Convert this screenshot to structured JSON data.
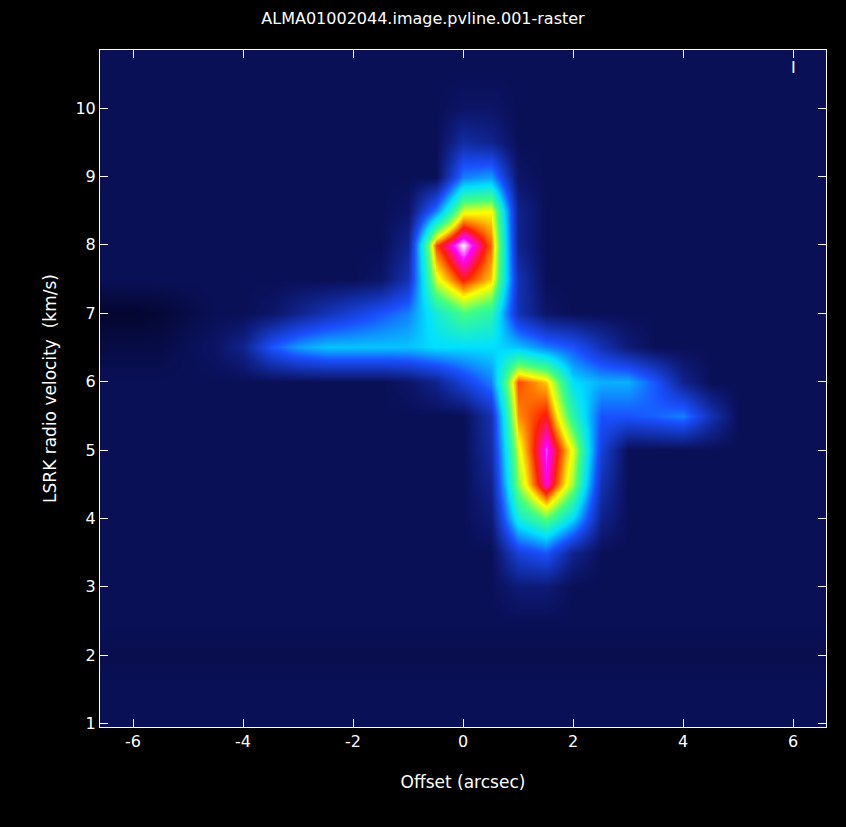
{
  "chart_data": {
    "type": "heatmap",
    "title": "ALMA01002044.image.pvline.001-raster",
    "x_label": "Offset (arcsec)",
    "y_label": "LSRK radio velocity  (km/s)",
    "annotations": [
      {
        "text": "I",
        "x": 6,
        "y": 10.6
      }
    ],
    "x": [
      -6.5,
      -6,
      -5.5,
      -5,
      -4.5,
      -4,
      -3.5,
      -3,
      -2.5,
      -2,
      -1.5,
      -1,
      -0.5,
      0,
      0.5,
      1,
      1.5,
      2,
      2.5,
      3,
      3.5,
      4,
      4.5,
      5,
      5.5,
      6,
      6.5
    ],
    "y": [
      1,
      1.5,
      2,
      2.5,
      3,
      3.5,
      4,
      4.5,
      5,
      5.5,
      6,
      6.5,
      7,
      7.5,
      8,
      8.5,
      9,
      9.5,
      10,
      10.5,
      11
    ],
    "cells": [
      [
        0.08,
        0.08,
        0.08,
        0.08,
        0.08,
        0.08,
        0.08,
        0.08,
        0.08,
        0.08,
        0.08,
        0.08,
        0.08,
        0.08,
        0.08,
        0.08,
        0.08,
        0.08,
        0.08,
        0.08,
        0.08,
        0.08,
        0.08,
        0.08,
        0.08,
        0.08,
        0.08
      ],
      [
        0.08,
        0.08,
        0.08,
        0.08,
        0.08,
        0.08,
        0.08,
        0.08,
        0.08,
        0.08,
        0.08,
        0.08,
        0.08,
        0.08,
        0.08,
        0.08,
        0.08,
        0.08,
        0.08,
        0.08,
        0.08,
        0.08,
        0.08,
        0.08,
        0.08,
        0.08,
        0.08
      ],
      [
        0.07,
        0.07,
        0.07,
        0.07,
        0.07,
        0.07,
        0.07,
        0.07,
        0.07,
        0.07,
        0.07,
        0.07,
        0.07,
        0.07,
        0.07,
        0.07,
        0.07,
        0.07,
        0.07,
        0.07,
        0.07,
        0.07,
        0.07,
        0.07,
        0.07,
        0.07,
        0.07
      ],
      [
        0.08,
        0.08,
        0.08,
        0.08,
        0.08,
        0.08,
        0.08,
        0.08,
        0.08,
        0.08,
        0.08,
        0.08,
        0.08,
        0.08,
        0.08,
        0.08,
        0.08,
        0.08,
        0.08,
        0.08,
        0.08,
        0.08,
        0.08,
        0.08,
        0.08,
        0.08,
        0.08
      ],
      [
        0.08,
        0.08,
        0.08,
        0.08,
        0.08,
        0.08,
        0.08,
        0.08,
        0.08,
        0.08,
        0.08,
        0.08,
        0.08,
        0.08,
        0.08,
        0.12,
        0.12,
        0.08,
        0.08,
        0.08,
        0.08,
        0.08,
        0.08,
        0.08,
        0.08,
        0.08,
        0.08
      ],
      [
        0.08,
        0.08,
        0.08,
        0.08,
        0.08,
        0.08,
        0.08,
        0.08,
        0.08,
        0.08,
        0.08,
        0.08,
        0.08,
        0.08,
        0.08,
        0.25,
        0.3,
        0.15,
        0.08,
        0.08,
        0.08,
        0.08,
        0.08,
        0.08,
        0.08,
        0.08,
        0.08
      ],
      [
        0.08,
        0.08,
        0.08,
        0.08,
        0.08,
        0.08,
        0.08,
        0.08,
        0.08,
        0.08,
        0.08,
        0.08,
        0.08,
        0.08,
        0.12,
        0.5,
        0.62,
        0.45,
        0.15,
        0.08,
        0.08,
        0.08,
        0.08,
        0.08,
        0.08,
        0.08,
        0.08
      ],
      [
        0.08,
        0.08,
        0.08,
        0.08,
        0.08,
        0.08,
        0.08,
        0.08,
        0.08,
        0.08,
        0.08,
        0.08,
        0.08,
        0.08,
        0.15,
        0.65,
        0.92,
        0.65,
        0.2,
        0.08,
        0.08,
        0.08,
        0.08,
        0.08,
        0.08,
        0.08,
        0.08
      ],
      [
        0.08,
        0.08,
        0.08,
        0.08,
        0.08,
        0.08,
        0.08,
        0.08,
        0.08,
        0.08,
        0.08,
        0.08,
        0.08,
        0.08,
        0.18,
        0.7,
        0.95,
        0.7,
        0.25,
        0.08,
        0.08,
        0.08,
        0.08,
        0.08,
        0.08,
        0.08,
        0.08
      ],
      [
        0.08,
        0.08,
        0.08,
        0.08,
        0.08,
        0.08,
        0.08,
        0.08,
        0.08,
        0.08,
        0.08,
        0.08,
        0.08,
        0.08,
        0.2,
        0.78,
        0.85,
        0.55,
        0.3,
        0.3,
        0.32,
        0.35,
        0.2,
        0.08,
        0.08,
        0.08,
        0.08
      ],
      [
        0.08,
        0.08,
        0.08,
        0.08,
        0.08,
        0.08,
        0.08,
        0.08,
        0.08,
        0.08,
        0.08,
        0.1,
        0.15,
        0.25,
        0.35,
        0.82,
        0.75,
        0.45,
        0.4,
        0.4,
        0.3,
        0.15,
        0.08,
        0.08,
        0.08,
        0.08,
        0.08
      ],
      [
        0.06,
        0.06,
        0.06,
        0.08,
        0.1,
        0.15,
        0.3,
        0.38,
        0.42,
        0.42,
        0.42,
        0.42,
        0.45,
        0.45,
        0.45,
        0.42,
        0.35,
        0.3,
        0.2,
        0.12,
        0.08,
        0.08,
        0.08,
        0.08,
        0.08,
        0.08,
        0.08
      ],
      [
        0.03,
        0.03,
        0.04,
        0.06,
        0.08,
        0.08,
        0.1,
        0.15,
        0.2,
        0.25,
        0.3,
        0.35,
        0.5,
        0.6,
        0.55,
        0.2,
        0.1,
        0.08,
        0.08,
        0.08,
        0.08,
        0.08,
        0.08,
        0.08,
        0.08,
        0.08,
        0.08
      ],
      [
        0.08,
        0.08,
        0.08,
        0.08,
        0.08,
        0.08,
        0.08,
        0.08,
        0.08,
        0.08,
        0.1,
        0.2,
        0.7,
        0.85,
        0.75,
        0.2,
        0.08,
        0.08,
        0.08,
        0.08,
        0.08,
        0.08,
        0.08,
        0.08,
        0.08,
        0.08,
        0.08
      ],
      [
        0.08,
        0.08,
        0.08,
        0.08,
        0.08,
        0.08,
        0.08,
        0.08,
        0.08,
        0.08,
        0.08,
        0.15,
        0.82,
        1.0,
        0.8,
        0.15,
        0.08,
        0.08,
        0.08,
        0.08,
        0.08,
        0.08,
        0.08,
        0.08,
        0.08,
        0.08,
        0.08
      ],
      [
        0.08,
        0.08,
        0.08,
        0.08,
        0.08,
        0.08,
        0.08,
        0.08,
        0.08,
        0.08,
        0.08,
        0.1,
        0.35,
        0.7,
        0.72,
        0.15,
        0.08,
        0.08,
        0.08,
        0.08,
        0.08,
        0.08,
        0.08,
        0.08,
        0.08,
        0.08,
        0.08
      ],
      [
        0.08,
        0.08,
        0.08,
        0.08,
        0.08,
        0.08,
        0.08,
        0.08,
        0.08,
        0.08,
        0.08,
        0.08,
        0.08,
        0.35,
        0.38,
        0.1,
        0.08,
        0.08,
        0.08,
        0.08,
        0.08,
        0.08,
        0.08,
        0.08,
        0.08,
        0.08,
        0.08
      ],
      [
        0.08,
        0.08,
        0.08,
        0.08,
        0.08,
        0.08,
        0.08,
        0.08,
        0.08,
        0.08,
        0.08,
        0.08,
        0.08,
        0.18,
        0.15,
        0.08,
        0.08,
        0.08,
        0.08,
        0.08,
        0.08,
        0.08,
        0.08,
        0.08,
        0.08,
        0.08,
        0.08
      ],
      [
        0.08,
        0.08,
        0.08,
        0.08,
        0.08,
        0.08,
        0.08,
        0.08,
        0.08,
        0.08,
        0.08,
        0.08,
        0.08,
        0.1,
        0.1,
        0.08,
        0.08,
        0.08,
        0.08,
        0.08,
        0.08,
        0.08,
        0.08,
        0.08,
        0.08,
        0.08,
        0.08
      ],
      [
        0.08,
        0.08,
        0.08,
        0.08,
        0.08,
        0.08,
        0.08,
        0.08,
        0.08,
        0.08,
        0.08,
        0.08,
        0.08,
        0.08,
        0.08,
        0.08,
        0.08,
        0.08,
        0.08,
        0.08,
        0.08,
        0.08,
        0.08,
        0.08,
        0.08,
        0.08,
        0.08
      ],
      [
        0.08,
        0.08,
        0.08,
        0.08,
        0.08,
        0.08,
        0.08,
        0.08,
        0.08,
        0.08,
        0.08,
        0.08,
        0.08,
        0.08,
        0.08,
        0.08,
        0.08,
        0.08,
        0.08,
        0.08,
        0.08,
        0.08,
        0.08,
        0.08,
        0.08,
        0.08,
        0.08
      ]
    ],
    "zlim": [
      0,
      1
    ],
    "xlim": [
      -6.6,
      6.6
    ],
    "ylim": [
      0.95,
      10.85
    ],
    "xticks": [
      -6,
      -4,
      -2,
      0,
      2,
      4,
      6
    ],
    "yticks": [
      1,
      2,
      3,
      4,
      5,
      6,
      7,
      8,
      9,
      10
    ],
    "grid": false
  }
}
